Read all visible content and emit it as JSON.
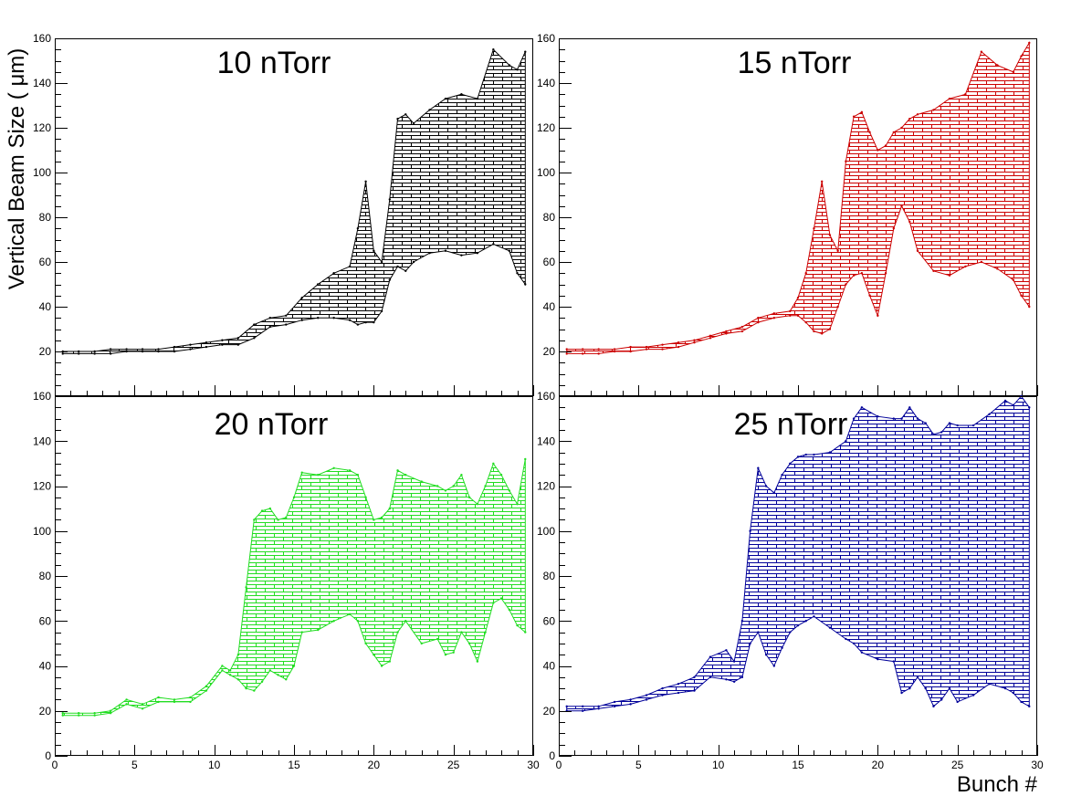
{
  "figure": {
    "ylabel": "Vertical Beam Size ( μm)",
    "xlabel": "Bunch #"
  },
  "chart_data": [
    {
      "type": "area",
      "title": "10 nTorr",
      "color": "#000000",
      "xlim": [
        0,
        30
      ],
      "ylim": [
        0,
        160
      ],
      "x": [
        0.5,
        1.5,
        2.5,
        3.5,
        4.5,
        5.5,
        6.5,
        7.5,
        8.5,
        9.5,
        10.5,
        11.5,
        12.5,
        13.5,
        14.5,
        15.5,
        16.5,
        17.5,
        18.5,
        19.0,
        19.5,
        20.0,
        20.5,
        21.0,
        21.5,
        22.0,
        22.5,
        23.5,
        24.5,
        25.5,
        26.5,
        27.5,
        28.5,
        29.0,
        29.5
      ],
      "upper": [
        20,
        20,
        20,
        21,
        21,
        21,
        21,
        22,
        23,
        24,
        25,
        26,
        32,
        35,
        36,
        44,
        50,
        55,
        58,
        75,
        96,
        65,
        60,
        88,
        124,
        126,
        122,
        128,
        133,
        135,
        133,
        155,
        148,
        146,
        154
      ],
      "lower": [
        19,
        19,
        19,
        19,
        20,
        20,
        20,
        20,
        21,
        22,
        23,
        23,
        26,
        31,
        32,
        34,
        35,
        35,
        34,
        32,
        33,
        33,
        38,
        52,
        58,
        56,
        60,
        64,
        65,
        63,
        64,
        68,
        65,
        55,
        50
      ],
      "yticks": [
        20,
        40,
        60,
        80,
        100,
        120,
        140,
        160
      ],
      "xticks": []
    },
    {
      "type": "area",
      "title": "15 nTorr",
      "color": "#cc0000",
      "xlim": [
        0,
        30
      ],
      "ylim": [
        0,
        160
      ],
      "x": [
        0.5,
        1.5,
        2.5,
        3.5,
        4.5,
        5.5,
        6.5,
        7.5,
        8.5,
        9.5,
        10.5,
        11.5,
        12.5,
        13.5,
        14.5,
        15.0,
        15.5,
        16.0,
        16.5,
        17.0,
        17.5,
        18.0,
        18.5,
        19.0,
        19.5,
        20.0,
        20.5,
        21.0,
        21.5,
        22.0,
        22.5,
        23.5,
        24.5,
        25.5,
        26.5,
        27.5,
        28.5,
        29.0,
        29.5
      ],
      "upper": [
        21,
        21,
        21,
        21,
        22,
        22,
        23,
        24,
        25,
        27,
        29,
        31,
        35,
        37,
        38,
        44,
        55,
        75,
        96,
        72,
        65,
        105,
        125,
        127,
        118,
        110,
        112,
        118,
        120,
        124,
        126,
        128,
        133,
        135,
        154,
        148,
        145,
        152,
        158
      ],
      "lower": [
        19,
        19,
        19,
        20,
        20,
        21,
        21,
        22,
        24,
        26,
        28,
        29,
        33,
        35,
        36,
        36,
        33,
        29,
        28,
        30,
        40,
        50,
        54,
        55,
        45,
        36,
        55,
        75,
        85,
        78,
        65,
        56,
        54,
        58,
        60,
        57,
        52,
        45,
        40
      ],
      "yticks": [
        20,
        40,
        60,
        80,
        100,
        120,
        140,
        160
      ],
      "xticks": []
    },
    {
      "type": "area",
      "title": "20 nTorr",
      "color": "#22dd22",
      "xlim": [
        0,
        30
      ],
      "ylim": [
        0,
        160
      ],
      "x": [
        0.5,
        1.5,
        2.5,
        3.5,
        4.5,
        5.5,
        6.5,
        7.5,
        8.5,
        9.5,
        10.5,
        11.0,
        11.5,
        12.0,
        12.5,
        13.0,
        13.5,
        14.0,
        14.5,
        15.0,
        15.5,
        16.5,
        17.5,
        18.5,
        19.0,
        19.5,
        20.0,
        20.5,
        21.0,
        21.5,
        22.0,
        23.0,
        24.0,
        24.5,
        25.0,
        25.5,
        26.0,
        26.5,
        27.0,
        27.5,
        28.0,
        28.5,
        29.0,
        29.5
      ],
      "upper": [
        19,
        19,
        19,
        20,
        25,
        23,
        26,
        25,
        26,
        31,
        40,
        38,
        45,
        75,
        105,
        109,
        110,
        105,
        106,
        115,
        126,
        125,
        128,
        127,
        125,
        115,
        105,
        106,
        110,
        127,
        125,
        122,
        120,
        118,
        120,
        125,
        115,
        112,
        120,
        130,
        125,
        118,
        112,
        132
      ],
      "lower": [
        18,
        18,
        18,
        19,
        23,
        21,
        24,
        24,
        24,
        29,
        38,
        36,
        34,
        30,
        29,
        33,
        38,
        36,
        34,
        40,
        55,
        56,
        60,
        63,
        60,
        50,
        45,
        40,
        42,
        55,
        60,
        50,
        52,
        45,
        46,
        55,
        50,
        42,
        55,
        68,
        70,
        65,
        58,
        55
      ],
      "yticks": [
        0,
        20,
        40,
        60,
        80,
        100,
        120,
        140,
        160
      ],
      "xticks": [
        0,
        5,
        10,
        15,
        20,
        25,
        30
      ]
    },
    {
      "type": "area",
      "title": "25 nTorr",
      "color": "#000099",
      "xlim": [
        0,
        30
      ],
      "ylim": [
        0,
        160
      ],
      "x": [
        0.5,
        1.5,
        2.5,
        3.5,
        4.5,
        5.5,
        6.5,
        7.5,
        8.5,
        9.5,
        10.5,
        11.0,
        11.5,
        12.0,
        12.5,
        13.0,
        13.5,
        14.0,
        14.5,
        15.0,
        15.5,
        16.0,
        17.0,
        18.0,
        18.5,
        19.0,
        20.0,
        21.0,
        21.5,
        22.0,
        22.5,
        23.0,
        23.5,
        24.0,
        24.5,
        25.0,
        26.0,
        27.0,
        28.0,
        28.5,
        29.0,
        29.5
      ],
      "upper": [
        22,
        22,
        22,
        24,
        25,
        27,
        30,
        32,
        35,
        44,
        47,
        42,
        60,
        100,
        128,
        120,
        117,
        125,
        130,
        133,
        134,
        134,
        135,
        140,
        150,
        155,
        151,
        150,
        150,
        155,
        150,
        148,
        143,
        144,
        148,
        147,
        147,
        152,
        158,
        156,
        160,
        155
      ],
      "lower": [
        20,
        20,
        21,
        22,
        23,
        25,
        27,
        28,
        29,
        35,
        34,
        33,
        35,
        50,
        55,
        45,
        40,
        48,
        55,
        58,
        60,
        62,
        57,
        52,
        50,
        46,
        43,
        42,
        28,
        30,
        35,
        30,
        22,
        25,
        30,
        24,
        27,
        32,
        30,
        28,
        24,
        22
      ],
      "yticks": [
        0,
        20,
        40,
        60,
        80,
        100,
        120,
        140,
        160
      ],
      "xticks": [
        0,
        5,
        10,
        15,
        20,
        25,
        30
      ]
    }
  ]
}
